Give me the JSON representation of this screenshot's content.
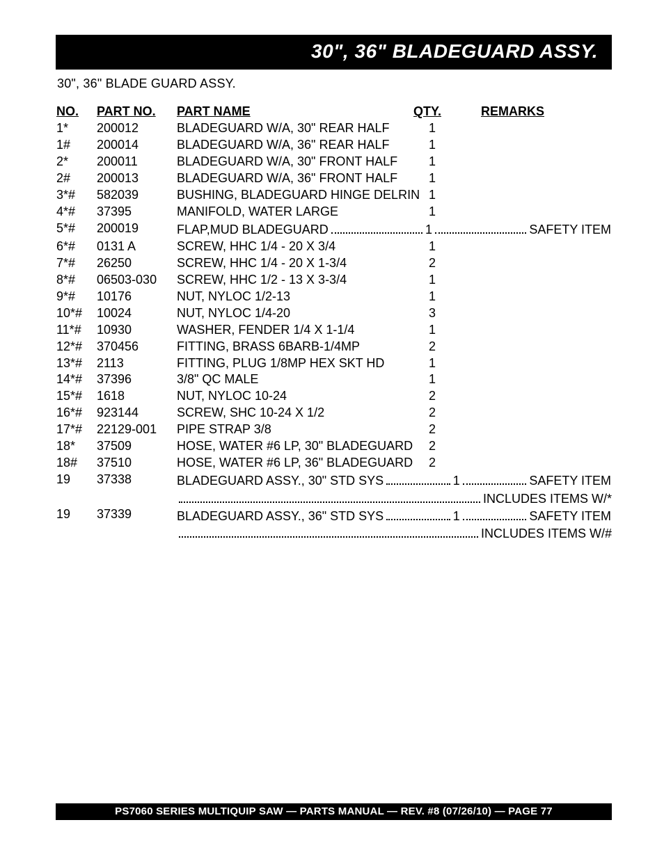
{
  "header": {
    "title": "30\", 36\"  BLADEGUARD ASSY.",
    "subtitle": "30\", 36\" BLADE GUARD ASSY."
  },
  "columns": {
    "no": "NO.",
    "part_no": "PART NO.",
    "part_name": "PART NAME",
    "qty": "QTY.",
    "remarks": "REMARKS"
  },
  "parts": [
    {
      "no": "1*",
      "part_no": "200012",
      "name": "BLADEGUARD W/A, 30\" REAR HALF",
      "qty": "1",
      "remarks": ""
    },
    {
      "no": "1#",
      "part_no": "200014",
      "name": "BLADEGUARD W/A, 36\" REAR HALF",
      "qty": "1",
      "remarks": ""
    },
    {
      "no": "2*",
      "part_no": "200011",
      "name": "BLADEGUARD W/A, 30\" FRONT HALF",
      "qty": "1",
      "remarks": ""
    },
    {
      "no": "2#",
      "part_no": "200013",
      "name": "BLADEGUARD W/A, 36\" FRONT HALF",
      "qty": "1",
      "remarks": ""
    },
    {
      "no": "3*#",
      "part_no": "582039",
      "name": "BUSHING, BLADEGUARD HINGE DELRIN",
      "qty": "1",
      "remarks": ""
    },
    {
      "no": "4*#",
      "part_no": "37395",
      "name": "MANIFOLD, WATER LARGE",
      "qty": "1",
      "remarks": ""
    },
    {
      "no": "5*#",
      "part_no": "200019",
      "name": "FLAP,MUD BLADEGUARD",
      "qty": "1",
      "remarks": "SAFETY  ITEM",
      "leader": true
    },
    {
      "no": "6*#",
      "part_no": "0131 A",
      "name": "SCREW, HHC 1/4 - 20 X 3/4",
      "qty": "1",
      "remarks": ""
    },
    {
      "no": "7*#",
      "part_no": "26250",
      "name": "SCREW, HHC 1/4 - 20 X 1-3/4",
      "qty": "2",
      "remarks": ""
    },
    {
      "no": "8*#",
      "part_no": "06503-030",
      "name": "SCREW, HHC 1/2 - 13 X 3-3/4",
      "qty": "1",
      "remarks": ""
    },
    {
      "no": "9*#",
      "part_no": "10176",
      "name": "NUT, NYLOC 1/2-13",
      "qty": "1",
      "remarks": ""
    },
    {
      "no": "10*#",
      "part_no": "10024",
      "name": "NUT, NYLOC 1/4-20",
      "qty": "3",
      "remarks": ""
    },
    {
      "no": "11*#",
      "part_no": "10930",
      "name": "WASHER, FENDER 1/4 X 1-1/4",
      "qty": "1",
      "remarks": ""
    },
    {
      "no": "12*#",
      "part_no": "370456",
      "name": "FITTING, BRASS 6BARB-1/4MP",
      "qty": "2",
      "remarks": ""
    },
    {
      "no": "13*#",
      "part_no": "2113",
      "name": "FITTING, PLUG 1/8MP HEX SKT HD",
      "qty": "1",
      "remarks": ""
    },
    {
      "no": "14*#",
      "part_no": "37396",
      "name": "3/8\" QC MALE",
      "qty": "1",
      "remarks": ""
    },
    {
      "no": "15*#",
      "part_no": "1618",
      "name": "NUT, NYLOC 10-24",
      "qty": "2",
      "remarks": ""
    },
    {
      "no": "16*#",
      "part_no": "923144",
      "name": "SCREW, SHC 10-24 X 1/2",
      "qty": "2",
      "remarks": ""
    },
    {
      "no": "17*#",
      "part_no": "22129-001",
      "name": "PIPE STRAP 3/8",
      "qty": "2",
      "remarks": ""
    },
    {
      "no": "18*",
      "part_no": "37509",
      "name": "HOSE, WATER #6 LP, 30\" BLADEGUARD",
      "qty": "2",
      "remarks": ""
    },
    {
      "no": "18#",
      "part_no": "37510",
      "name": "HOSE, WATER #6 LP, 36\" BLADEGUARD",
      "qty": "2",
      "remarks": ""
    },
    {
      "no": "19",
      "part_no": "37338",
      "name": "BLADEGUARD ASSY., 30\" STD SYS",
      "qty": "1",
      "remarks": "SAFETY ITEM",
      "leader": true,
      "continuation": "INCLUDES ITEMS W/*"
    },
    {
      "no": "19",
      "part_no": "37339",
      "name": "BLADEGUARD ASSY., 36\" STD SYS",
      "qty": "1",
      "remarks": "SAFETY ITEM",
      "leader": true,
      "continuation": "INCLUDES ITEMS W/#"
    }
  ],
  "footer": {
    "text": "PS7060 SERIES MULTIQUIP SAW — PARTS MANUAL — REV. #8 (07/26/10) — PAGE 77"
  }
}
